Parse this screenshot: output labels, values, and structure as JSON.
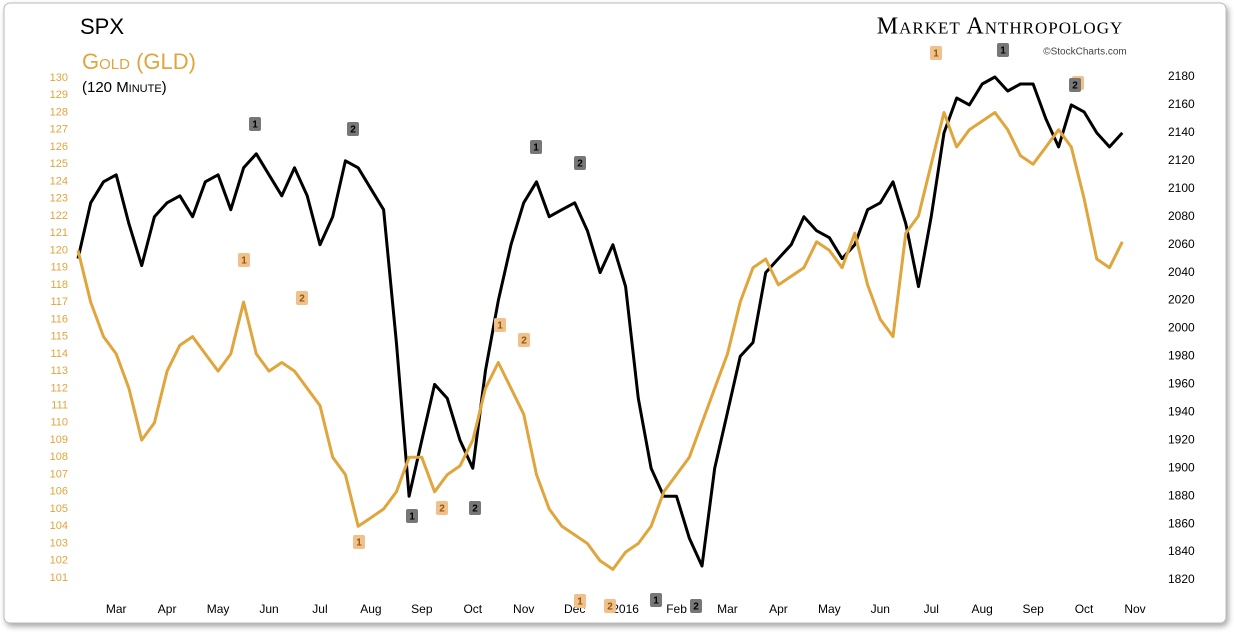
{
  "chart_data": {
    "type": "line",
    "title": "SPX",
    "subtitle": "Gold (GLD)",
    "timeframe": "(120 Minute)",
    "brand": "Market Anthropology",
    "source": "©StockCharts.com",
    "categories": [
      null,
      null,
      null,
      "Mar",
      null,
      null,
      null,
      "Apr",
      null,
      null,
      null,
      "May",
      null,
      null,
      null,
      "Jun",
      null,
      null,
      null,
      "Jul",
      null,
      null,
      null,
      "Aug",
      null,
      null,
      null,
      "Sep",
      null,
      null,
      null,
      "Oct",
      null,
      null,
      null,
      "Nov",
      null,
      null,
      null,
      "Dec",
      null,
      null,
      null,
      "2016",
      null,
      null,
      null,
      "Feb",
      null,
      null,
      null,
      "Mar",
      null,
      null,
      null,
      "Apr",
      null,
      null,
      null,
      "May",
      null,
      null,
      null,
      "Jun",
      null,
      null,
      null,
      "Jul",
      null,
      null,
      null,
      "Aug",
      null,
      null,
      null,
      "Sep",
      null,
      null,
      null,
      "Oct",
      null,
      null,
      null,
      "Nov"
    ],
    "series": [
      {
        "name": "SPX",
        "color": "#000000",
        "axis": "y2",
        "values": [
          2050,
          2090,
          2105,
          2110,
          2075,
          2045,
          2080,
          2090,
          2095,
          2080,
          2105,
          2110,
          2085,
          2115,
          2125,
          2110,
          2095,
          2115,
          2095,
          2060,
          2080,
          2120,
          2115,
          2100,
          2085,
          1990,
          1880,
          1920,
          1960,
          1950,
          1920,
          1900,
          1970,
          2020,
          2060,
          2090,
          2105,
          2080,
          2085,
          2090,
          2070,
          2040,
          2060,
          2030,
          1950,
          1900,
          1880,
          1880,
          1850,
          1830,
          1900,
          1940,
          1980,
          1990,
          2040,
          2050,
          2060,
          2080,
          2070,
          2065,
          2050,
          2060,
          2085,
          2090,
          2105,
          2075,
          2030,
          2080,
          2140,
          2165,
          2160,
          2175,
          2180,
          2170,
          2175,
          2175,
          2150,
          2130,
          2160,
          2155,
          2140,
          2130,
          2140,
          null
        ]
      },
      {
        "name": "GLD",
        "color": "#e0a53c",
        "axis": "y",
        "values": [
          120,
          117,
          115,
          114,
          112,
          109,
          110,
          113,
          114.5,
          115,
          114,
          113,
          114,
          117,
          114,
          113,
          113.5,
          113,
          112,
          111,
          108,
          107,
          104,
          104.5,
          105,
          106,
          108,
          108,
          106,
          107,
          107.5,
          109,
          112,
          113.5,
          112,
          110.5,
          107,
          105,
          104,
          103.5,
          103,
          102,
          101.5,
          102.5,
          103,
          104,
          106,
          107,
          108,
          110,
          112,
          114,
          117,
          119,
          119.5,
          118,
          118.5,
          119,
          120.5,
          120,
          119,
          121,
          118,
          116,
          115,
          121,
          122,
          125,
          128,
          126,
          127,
          127.5,
          128,
          127,
          125.5,
          125,
          126,
          127,
          126,
          123,
          119.5,
          119,
          120.5,
          null
        ]
      }
    ],
    "ylim": [
      101,
      130
    ],
    "yticks": [
      101,
      102,
      103,
      104,
      105,
      106,
      107,
      108,
      109,
      110,
      111,
      112,
      113,
      114,
      115,
      116,
      117,
      118,
      119,
      120,
      121,
      122,
      123,
      124,
      125,
      126,
      127,
      128,
      129,
      130
    ],
    "y2lim": [
      1820,
      2180
    ],
    "y2ticks": [
      1820,
      1840,
      1860,
      1880,
      1900,
      1920,
      1940,
      1960,
      1980,
      2000,
      2020,
      2040,
      2060,
      2080,
      2100,
      2120,
      2140,
      2160,
      2180
    ],
    "grid": false,
    "annotations": [
      "1",
      "2",
      "1",
      "2",
      "1",
      "2",
      "1",
      "2",
      "1",
      "1",
      "2",
      "1",
      "2",
      "1",
      "2",
      "1",
      "2",
      "1",
      "2",
      "2"
    ]
  }
}
